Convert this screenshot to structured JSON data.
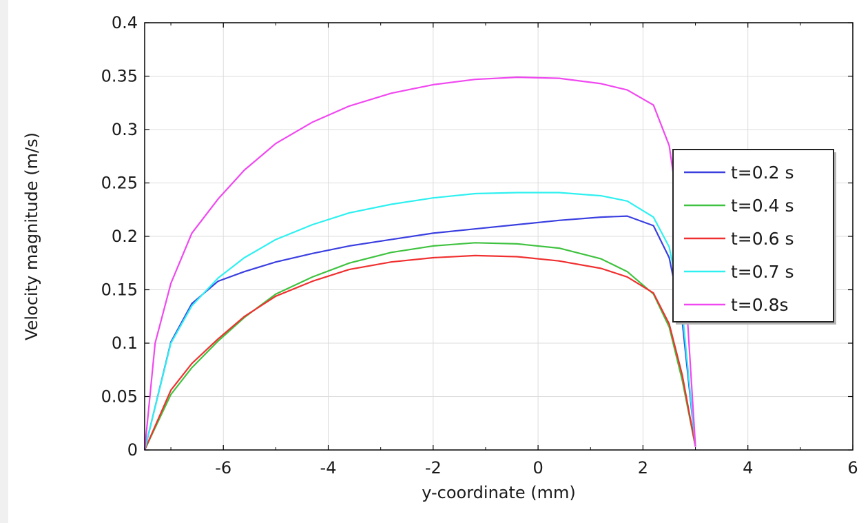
{
  "chart_data": {
    "type": "line",
    "title": "",
    "xlabel": "y-coordinate (mm)",
    "ylabel": "Velocity magnitude (m/s)",
    "xlim": [
      -7.5,
      6
    ],
    "ylim": [
      0,
      0.4
    ],
    "x_ticks": [
      -6,
      -4,
      -2,
      0,
      2,
      4,
      6
    ],
    "y_ticks": [
      0,
      0.05,
      0.1,
      0.15,
      0.2,
      0.25,
      0.3,
      0.35,
      0.4
    ],
    "x_tick_labels": [
      "-6",
      "-4",
      "-2",
      "0",
      "2",
      "4",
      "6"
    ],
    "y_tick_labels": [
      "0",
      "0.05",
      "0.1",
      "0.15",
      "0.2",
      "0.25",
      "0.3",
      "0.35",
      "0.4"
    ],
    "grid": true,
    "legend_position": "right",
    "series": [
      {
        "name": "t=0.2 s",
        "color": "#3a3fe0",
        "x": [
          -7.5,
          -7.0,
          -6.6,
          -6.1,
          -5.6,
          -5.0,
          -4.3,
          -3.6,
          -2.8,
          -2.0,
          -1.2,
          -0.4,
          0.4,
          1.2,
          1.7,
          2.2,
          2.5,
          2.75,
          3.0
        ],
        "y": [
          0,
          0.101,
          0.137,
          0.158,
          0.167,
          0.176,
          0.184,
          0.191,
          0.197,
          0.203,
          0.207,
          0.211,
          0.215,
          0.218,
          0.219,
          0.21,
          0.18,
          0.12,
          0.003
        ]
      },
      {
        "name": "t=0.4 s",
        "color": "#3fc23f",
        "x": [
          -7.5,
          -7.0,
          -6.6,
          -6.1,
          -5.6,
          -5.0,
          -4.3,
          -3.6,
          -2.8,
          -2.0,
          -1.2,
          -0.4,
          0.4,
          1.2,
          1.7,
          2.2,
          2.5,
          2.75,
          3.0
        ],
        "y": [
          0,
          0.052,
          0.077,
          0.102,
          0.124,
          0.146,
          0.162,
          0.175,
          0.185,
          0.191,
          0.194,
          0.193,
          0.189,
          0.179,
          0.167,
          0.146,
          0.115,
          0.065,
          0.003
        ]
      },
      {
        "name": "t=0.6 s",
        "color": "#f03030",
        "x": [
          -7.5,
          -7.0,
          -6.6,
          -6.1,
          -5.6,
          -5.0,
          -4.3,
          -3.6,
          -2.8,
          -2.0,
          -1.2,
          -0.4,
          0.4,
          1.2,
          1.7,
          2.2,
          2.5,
          2.75,
          3.0
        ],
        "y": [
          0,
          0.056,
          0.081,
          0.104,
          0.125,
          0.144,
          0.158,
          0.169,
          0.176,
          0.18,
          0.182,
          0.181,
          0.177,
          0.17,
          0.162,
          0.147,
          0.118,
          0.07,
          0.003
        ]
      },
      {
        "name": "t=0.7 s",
        "color": "#2ef0f0",
        "x": [
          -7.5,
          -7.0,
          -6.6,
          -6.1,
          -5.6,
          -5.0,
          -4.3,
          -3.6,
          -2.8,
          -2.0,
          -1.2,
          -0.4,
          0.4,
          1.2,
          1.7,
          2.2,
          2.5,
          2.75,
          3.0
        ],
        "y": [
          0,
          0.1,
          0.135,
          0.161,
          0.18,
          0.197,
          0.211,
          0.222,
          0.23,
          0.236,
          0.24,
          0.241,
          0.241,
          0.238,
          0.233,
          0.218,
          0.19,
          0.13,
          0.003
        ]
      },
      {
        "name": "t=0.8s",
        "color": "#f048f0",
        "x": [
          -7.5,
          -7.3,
          -7.0,
          -6.6,
          -6.1,
          -5.6,
          -5.0,
          -4.3,
          -3.6,
          -2.8,
          -2.0,
          -1.2,
          -0.4,
          0.4,
          1.2,
          1.7,
          2.2,
          2.5,
          2.75,
          3.0
        ],
        "y": [
          0,
          0.1,
          0.156,
          0.203,
          0.235,
          0.262,
          0.287,
          0.307,
          0.322,
          0.334,
          0.342,
          0.347,
          0.349,
          0.348,
          0.343,
          0.337,
          0.323,
          0.285,
          0.2,
          0.003
        ]
      }
    ]
  }
}
